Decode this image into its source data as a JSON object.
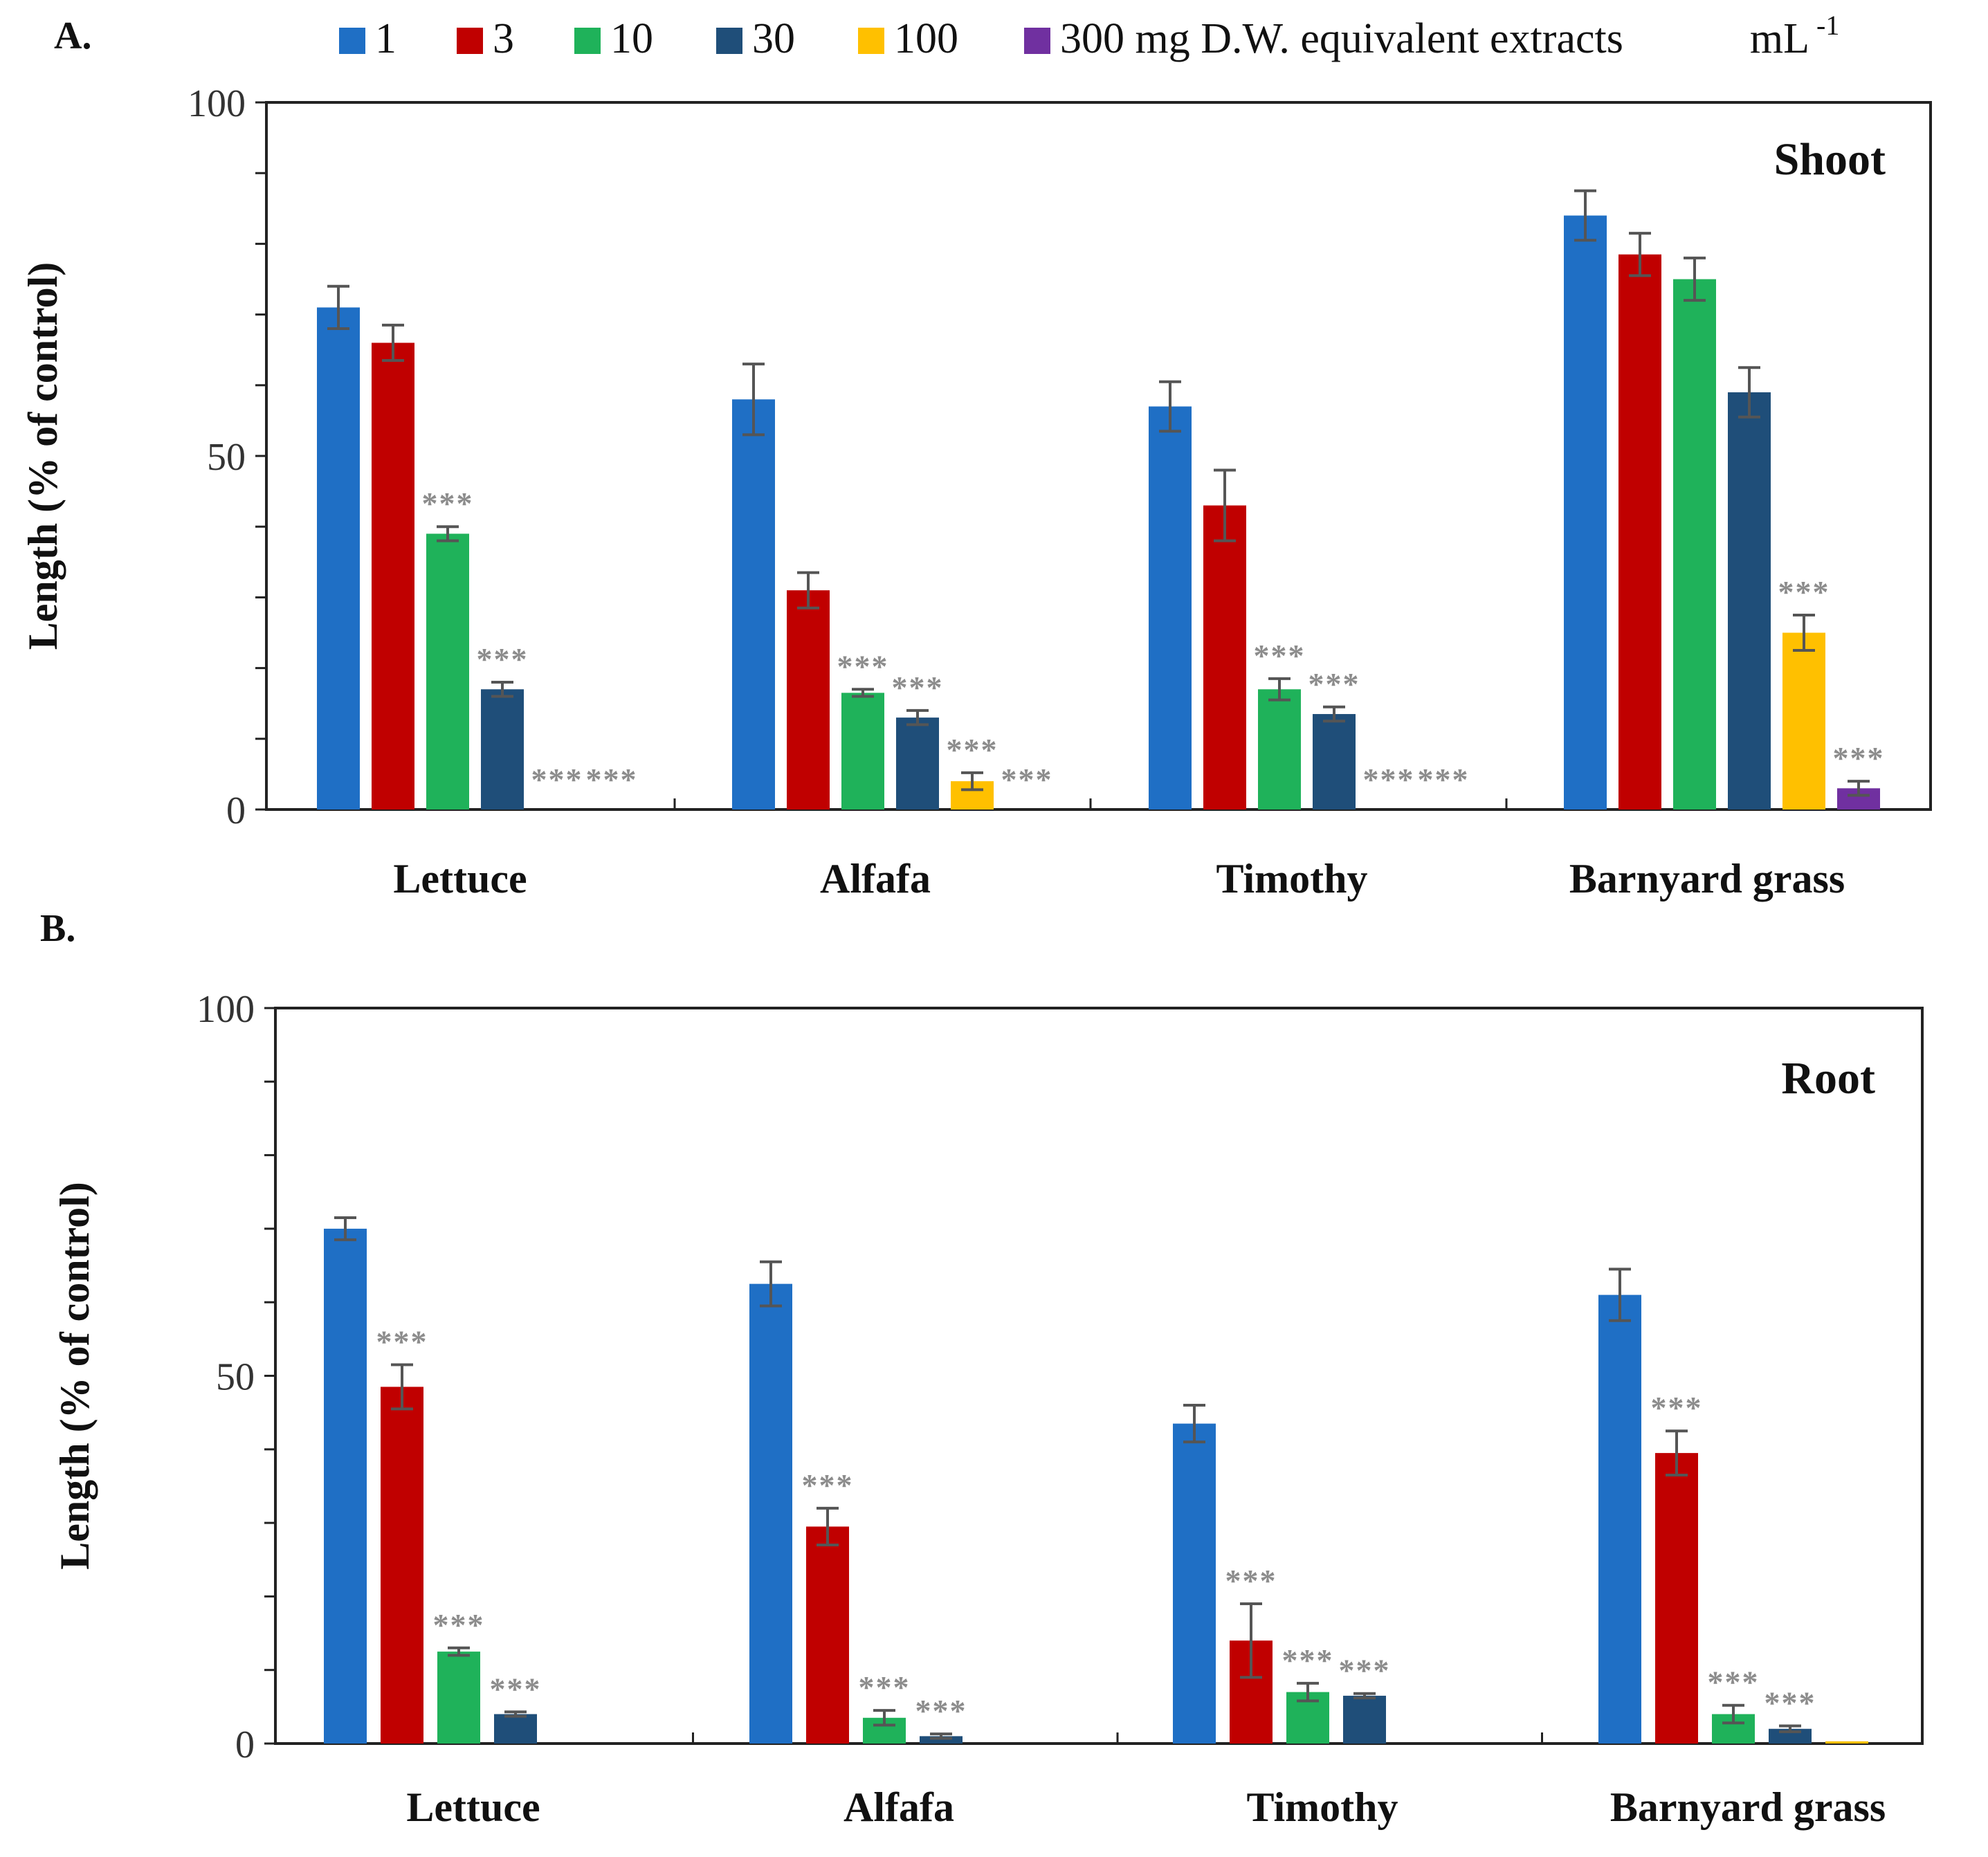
{
  "figure": {
    "panel_a_label": "A.",
    "panel_b_label": "B.",
    "legend_suffix": "mL",
    "legend_suffix_sup": "-1"
  },
  "colors": {
    "series": [
      "#1f6fc5",
      "#c00000",
      "#1fb25a",
      "#1f4e79",
      "#ffc000",
      "#7030a0"
    ],
    "error_bar": "#555555",
    "significance": "#8c8c8c",
    "axis": "#222222"
  },
  "chart_data": [
    {
      "type": "bar",
      "panel": "A",
      "title": "Shoot",
      "ylabel": "Length (% of control)",
      "xlabel": "",
      "ylim": [
        0,
        100
      ],
      "yticks": [
        "0",
        "50",
        "100"
      ],
      "categories": [
        "Lettuce",
        "Alfafa",
        "Timothy",
        "Barnyard grass"
      ],
      "legend_position": "top",
      "series": [
        {
          "name": "1",
          "values": [
            71,
            58,
            57,
            84
          ],
          "errors": [
            3,
            5,
            3.5,
            3.5
          ]
        },
        {
          "name": "3",
          "values": [
            66,
            31,
            43,
            78.5
          ],
          "errors": [
            2.5,
            2.5,
            5,
            3
          ]
        },
        {
          "name": "10",
          "values": [
            39,
            16.5,
            17,
            75
          ],
          "errors": [
            1,
            0.5,
            1.5,
            3
          ]
        },
        {
          "name": "30",
          "values": [
            17,
            13,
            13.5,
            59
          ],
          "errors": [
            1,
            1,
            1,
            3.5
          ]
        },
        {
          "name": "100",
          "values": [
            0,
            4,
            0,
            25
          ],
          "errors": [
            0,
            1.2,
            0,
            2.5
          ]
        },
        {
          "name": "300 mg D.W. equivalent extracts",
          "values": [
            0,
            0,
            0,
            3
          ],
          "errors": [
            0,
            0,
            0,
            1
          ]
        }
      ],
      "significance": [
        [
          null,
          null,
          "***",
          "***",
          "***",
          "***"
        ],
        [
          null,
          null,
          "***",
          "***",
          "***",
          "***"
        ],
        [
          null,
          null,
          "***",
          "***",
          "***",
          "***"
        ],
        [
          null,
          null,
          null,
          null,
          "***",
          "***"
        ]
      ]
    },
    {
      "type": "bar",
      "panel": "B",
      "title": "Root",
      "ylabel": "Length (% of control)",
      "xlabel": "",
      "ylim": [
        0,
        100
      ],
      "yticks": [
        "0",
        "50",
        "100"
      ],
      "categories": [
        "Lettuce",
        "Alfafa",
        "Timothy",
        "Barnyard grass"
      ],
      "series": [
        {
          "name": "1",
          "values": [
            70,
            62.5,
            43.5,
            61
          ],
          "errors": [
            1.5,
            3,
            2.5,
            3.5
          ]
        },
        {
          "name": "3",
          "values": [
            48.5,
            29.5,
            14,
            39.5
          ],
          "errors": [
            3,
            2.5,
            5,
            3
          ]
        },
        {
          "name": "10",
          "values": [
            12.5,
            3.5,
            7,
            4
          ],
          "errors": [
            0.5,
            1,
            1.2,
            1.2
          ]
        },
        {
          "name": "30",
          "values": [
            4,
            1,
            6.5,
            2
          ],
          "errors": [
            0.3,
            0.3,
            0.3,
            0.4
          ]
        },
        {
          "name": "100",
          "values": [
            0,
            0,
            0,
            0.3
          ],
          "errors": [
            0,
            0,
            0,
            0
          ]
        },
        {
          "name": "300 mg D.W. equivalent extracts",
          "values": [
            0,
            0,
            0,
            0
          ],
          "errors": [
            0,
            0,
            0,
            0
          ]
        }
      ],
      "significance": [
        [
          null,
          "***",
          "***",
          "***",
          null,
          null
        ],
        [
          null,
          "***",
          "***",
          "***",
          null,
          null
        ],
        [
          null,
          "***",
          "***",
          "***",
          null,
          null
        ],
        [
          null,
          "***",
          "***",
          "***",
          null,
          null
        ]
      ]
    }
  ]
}
